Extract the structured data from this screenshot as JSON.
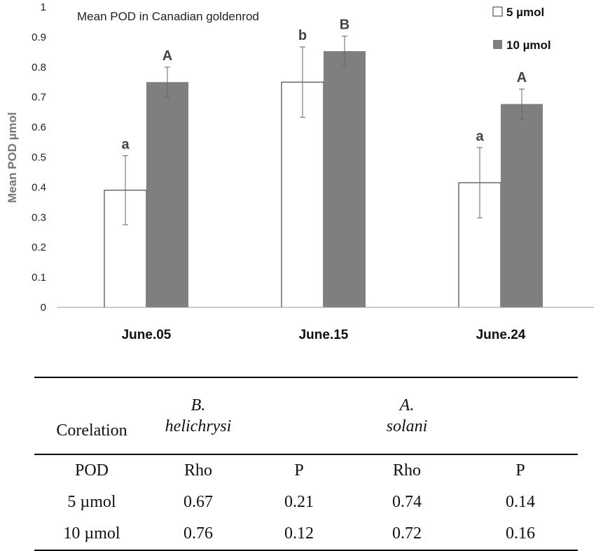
{
  "chart_data": {
    "type": "bar",
    "title": "Mean POD in Canadian goldenrod",
    "ylabel": "Mean POD µmol",
    "xlabel": "",
    "ylim": [
      0,
      1
    ],
    "yticks": [
      "0",
      "0.1",
      "0.2",
      "0.3",
      "0.4",
      "0.5",
      "0.6",
      "0.7",
      "0.8",
      "0.9",
      "1"
    ],
    "categories": [
      "June.05",
      "June.15",
      "June.24"
    ],
    "legend_position": "top-right",
    "series": [
      {
        "name": "5 µmol",
        "color": "#ffffff",
        "values": [
          0.39,
          0.75,
          0.415
        ],
        "errors": [
          0.115,
          0.117,
          0.117
        ],
        "letters": [
          "a",
          "b",
          "a"
        ]
      },
      {
        "name": "10 µmol",
        "color": "#7f7f7f",
        "values": [
          0.75,
          0.853,
          0.677
        ],
        "errors": [
          0.05,
          0.05,
          0.05
        ],
        "letters": [
          "A",
          "B",
          "A"
        ]
      }
    ]
  },
  "table": {
    "header": [
      "Corelation",
      "B.",
      "helichrysi",
      "A.",
      "solani"
    ],
    "subheader": [
      "POD",
      "Rho",
      "P",
      "Rho",
      "P"
    ],
    "rows": [
      [
        "5 µmol",
        "0.67",
        "0.21",
        "0.74",
        "0.14"
      ],
      [
        "10 µmol",
        "0.76",
        "0.12",
        "0.72",
        "0.16"
      ]
    ]
  }
}
